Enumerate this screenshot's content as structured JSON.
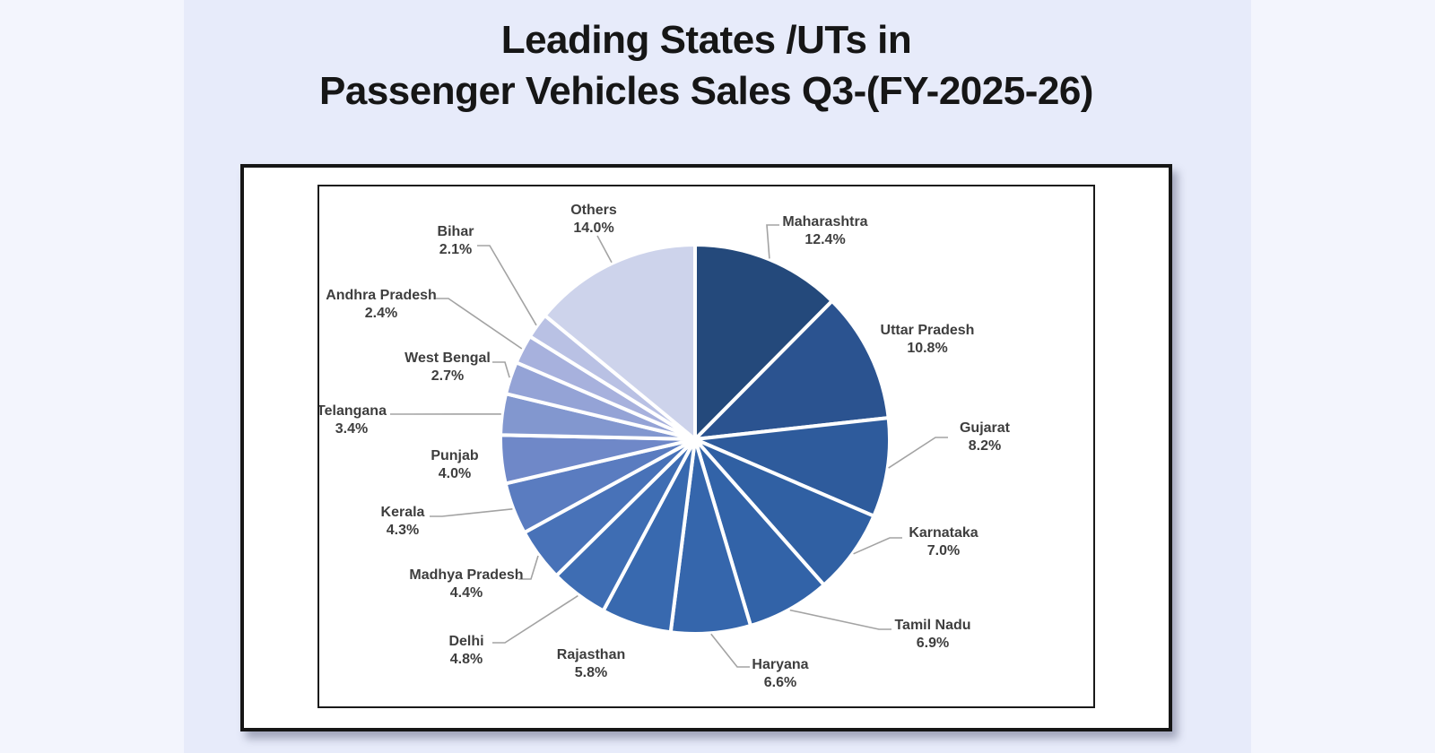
{
  "title": {
    "line1": "Leading States /UTs in",
    "line2": "Passenger Vehicles Sales Q3-(FY-2025-26)"
  },
  "chart_data": {
    "type": "pie",
    "title": "Leading States /UTs in Passenger Vehicles Sales Q3-(FY-2025-26)",
    "unit": "%",
    "start_angle": "12-o'clock",
    "direction": "clockwise",
    "legend": "none",
    "categories": [
      "Maharashtra",
      "Uttar Pradesh",
      "Gujarat",
      "Karnataka",
      "Tamil Nadu",
      "Haryana",
      "Rajasthan",
      "Delhi",
      "Madhya Pradesh",
      "Kerala",
      "Punjab",
      "Telangana",
      "West Bengal",
      "Andhra Pradesh",
      "Bihar",
      "Others"
    ],
    "values": [
      12.4,
      10.8,
      8.2,
      7.0,
      6.9,
      6.6,
      5.8,
      4.8,
      4.4,
      4.3,
      4.0,
      3.4,
      2.7,
      2.4,
      2.1,
      14.0
    ],
    "value_labels": [
      "12.4%",
      "10.8%",
      "8.2%",
      "7.0%",
      "6.9%",
      "6.6%",
      "5.8%",
      "4.8%",
      "4.4%",
      "4.3%",
      "4.0%",
      "3.4%",
      "2.7%",
      "2.4%",
      "2.1%",
      "14.0%"
    ],
    "colors": [
      "#24497B",
      "#2B5390",
      "#2E5B9C",
      "#3060A3",
      "#3263A8",
      "#3566AC",
      "#3869AF",
      "#3E6DB3",
      "#4872B8",
      "#5A7CC0",
      "#6F88C8",
      "#8297CF",
      "#94A3D6",
      "#A7B1DD",
      "#B9C1E4",
      "#CDD3EB"
    ],
    "slice_border_color": "#FFFFFF",
    "label_text_color": "#3E3E3E",
    "leader_line_color": "#A3A3A3"
  }
}
